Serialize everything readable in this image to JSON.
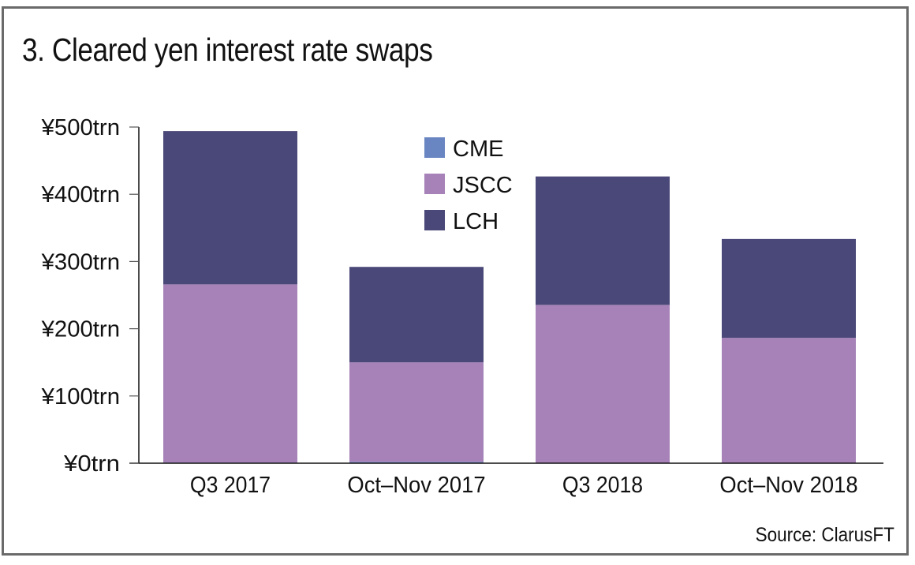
{
  "chart_data": {
    "type": "bar",
    "stacked": true,
    "title": "3. Cleared yen interest rate swaps",
    "xlabel": "",
    "ylabel": "",
    "categories": [
      "Q3 2017",
      "Oct–Nov 2017",
      "Q3 2018",
      "Oct–Nov 2018"
    ],
    "series": [
      {
        "name": "CME",
        "color": "#6a86c2",
        "values": [
          1,
          2,
          0.5,
          0.5
        ]
      },
      {
        "name": "JSCC",
        "color": "#a682b8",
        "values": [
          265,
          148,
          235,
          186
        ]
      },
      {
        "name": "LCH",
        "color": "#4a4878",
        "values": [
          228,
          142,
          191,
          147
        ]
      }
    ],
    "ylim": [
      0,
      500
    ],
    "yticks": [
      0,
      100,
      200,
      300,
      400,
      500
    ],
    "ytick_labels": [
      "¥0trn",
      "¥100trn",
      "¥200trn",
      "¥300trn",
      "¥400trn",
      "¥500trn"
    ],
    "grid": false,
    "legend_position": "top-center",
    "source": "Source: ClarusFT"
  }
}
